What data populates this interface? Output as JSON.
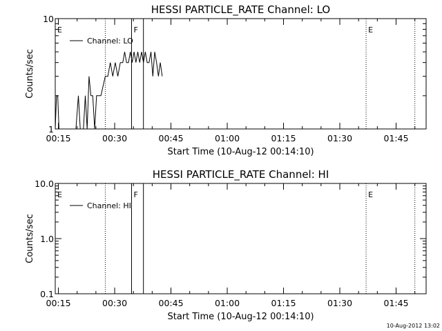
{
  "chart_data": [
    {
      "type": "line",
      "title": "HESSI PARTICLE_RATE Channel: LO",
      "xlabel": "Start Time (10-Aug-12 00:14:10)",
      "ylabel": "Counts/sec",
      "y_scale": "log",
      "ylim": [
        1,
        10
      ],
      "y_ticks": [
        "1",
        "10"
      ],
      "x_range": [
        "00:14:10",
        "01:53:00"
      ],
      "x_ticks": [
        "00:15",
        "00:30",
        "00:45",
        "01:00",
        "01:15",
        "01:30",
        "01:45"
      ],
      "legend": {
        "label": "Channel: LO",
        "placement": "top-left"
      },
      "markers": [
        {
          "time": "00:14:10",
          "label": "E",
          "style": "none"
        },
        {
          "time": "00:27:30",
          "label": "",
          "style": "dotted"
        },
        {
          "time": "00:34:30",
          "label": "F",
          "style": "solid"
        },
        {
          "time": "00:37:40",
          "label": "",
          "style": "solid"
        },
        {
          "time": "01:37:00",
          "label": "E",
          "style": "dotted"
        },
        {
          "time": "01:50:00",
          "label": "",
          "style": "dotted"
        }
      ],
      "series": [
        {
          "name": "Channel: LO",
          "x": [
            "00:14:10",
            "00:14:30",
            "00:14:50",
            "00:15:10",
            "00:15:30",
            "00:19:40",
            "00:20:20",
            "00:20:50",
            "00:21:40",
            "00:22:10",
            "00:22:40",
            "00:23:10",
            "00:23:40",
            "00:24:10",
            "00:24:40",
            "00:25:10",
            "00:25:40",
            "00:26:20",
            "00:27:30",
            "00:28:10",
            "00:28:50",
            "00:29:30",
            "00:30:10",
            "00:30:50",
            "00:31:30",
            "00:32:10",
            "00:32:40",
            "00:33:10",
            "00:33:40",
            "00:34:10",
            "00:34:40",
            "00:35:10",
            "00:35:40",
            "00:36:10",
            "00:36:40",
            "00:37:10",
            "00:37:40",
            "00:38:10",
            "00:38:40",
            "00:39:10",
            "00:39:40",
            "00:40:10",
            "00:40:40",
            "00:41:10",
            "00:41:40",
            "00:42:10",
            "00:42:40"
          ],
          "y": [
            1,
            2,
            2,
            1,
            1,
            1,
            2,
            1,
            1,
            2,
            1,
            3,
            2,
            2,
            1,
            2,
            2,
            2,
            3,
            3,
            4,
            3,
            4,
            3,
            4,
            4,
            5,
            4,
            4,
            5,
            4,
            5,
            4,
            5,
            4,
            5,
            4,
            5,
            4,
            4,
            5,
            3,
            5,
            4,
            3,
            4,
            3
          ]
        }
      ]
    },
    {
      "type": "line",
      "title": "HESSI PARTICLE_RATE Channel: HI",
      "xlabel": "Start Time (10-Aug-12 00:14:10)",
      "ylabel": "Counts/sec",
      "y_scale": "log",
      "ylim": [
        0.1,
        10
      ],
      "y_ticks": [
        "0.1",
        "1.0",
        "10.0"
      ],
      "x_range": [
        "00:14:10",
        "01:53:00"
      ],
      "x_ticks": [
        "00:15",
        "00:30",
        "00:45",
        "01:00",
        "01:15",
        "01:30",
        "01:45"
      ],
      "legend": {
        "label": "Channel: HI",
        "placement": "top-left"
      },
      "markers": [
        {
          "time": "00:14:10",
          "label": "E",
          "style": "none"
        },
        {
          "time": "00:27:30",
          "label": "",
          "style": "dotted"
        },
        {
          "time": "00:34:30",
          "label": "F",
          "style": "solid"
        },
        {
          "time": "00:37:40",
          "label": "",
          "style": "solid"
        },
        {
          "time": "01:37:00",
          "label": "E",
          "style": "dotted"
        },
        {
          "time": "01:50:00",
          "label": "",
          "style": "dotted"
        }
      ],
      "series": [
        {
          "name": "Channel: HI",
          "x": [],
          "y": []
        }
      ]
    }
  ],
  "stamp": "10-Aug-2012 13:02"
}
